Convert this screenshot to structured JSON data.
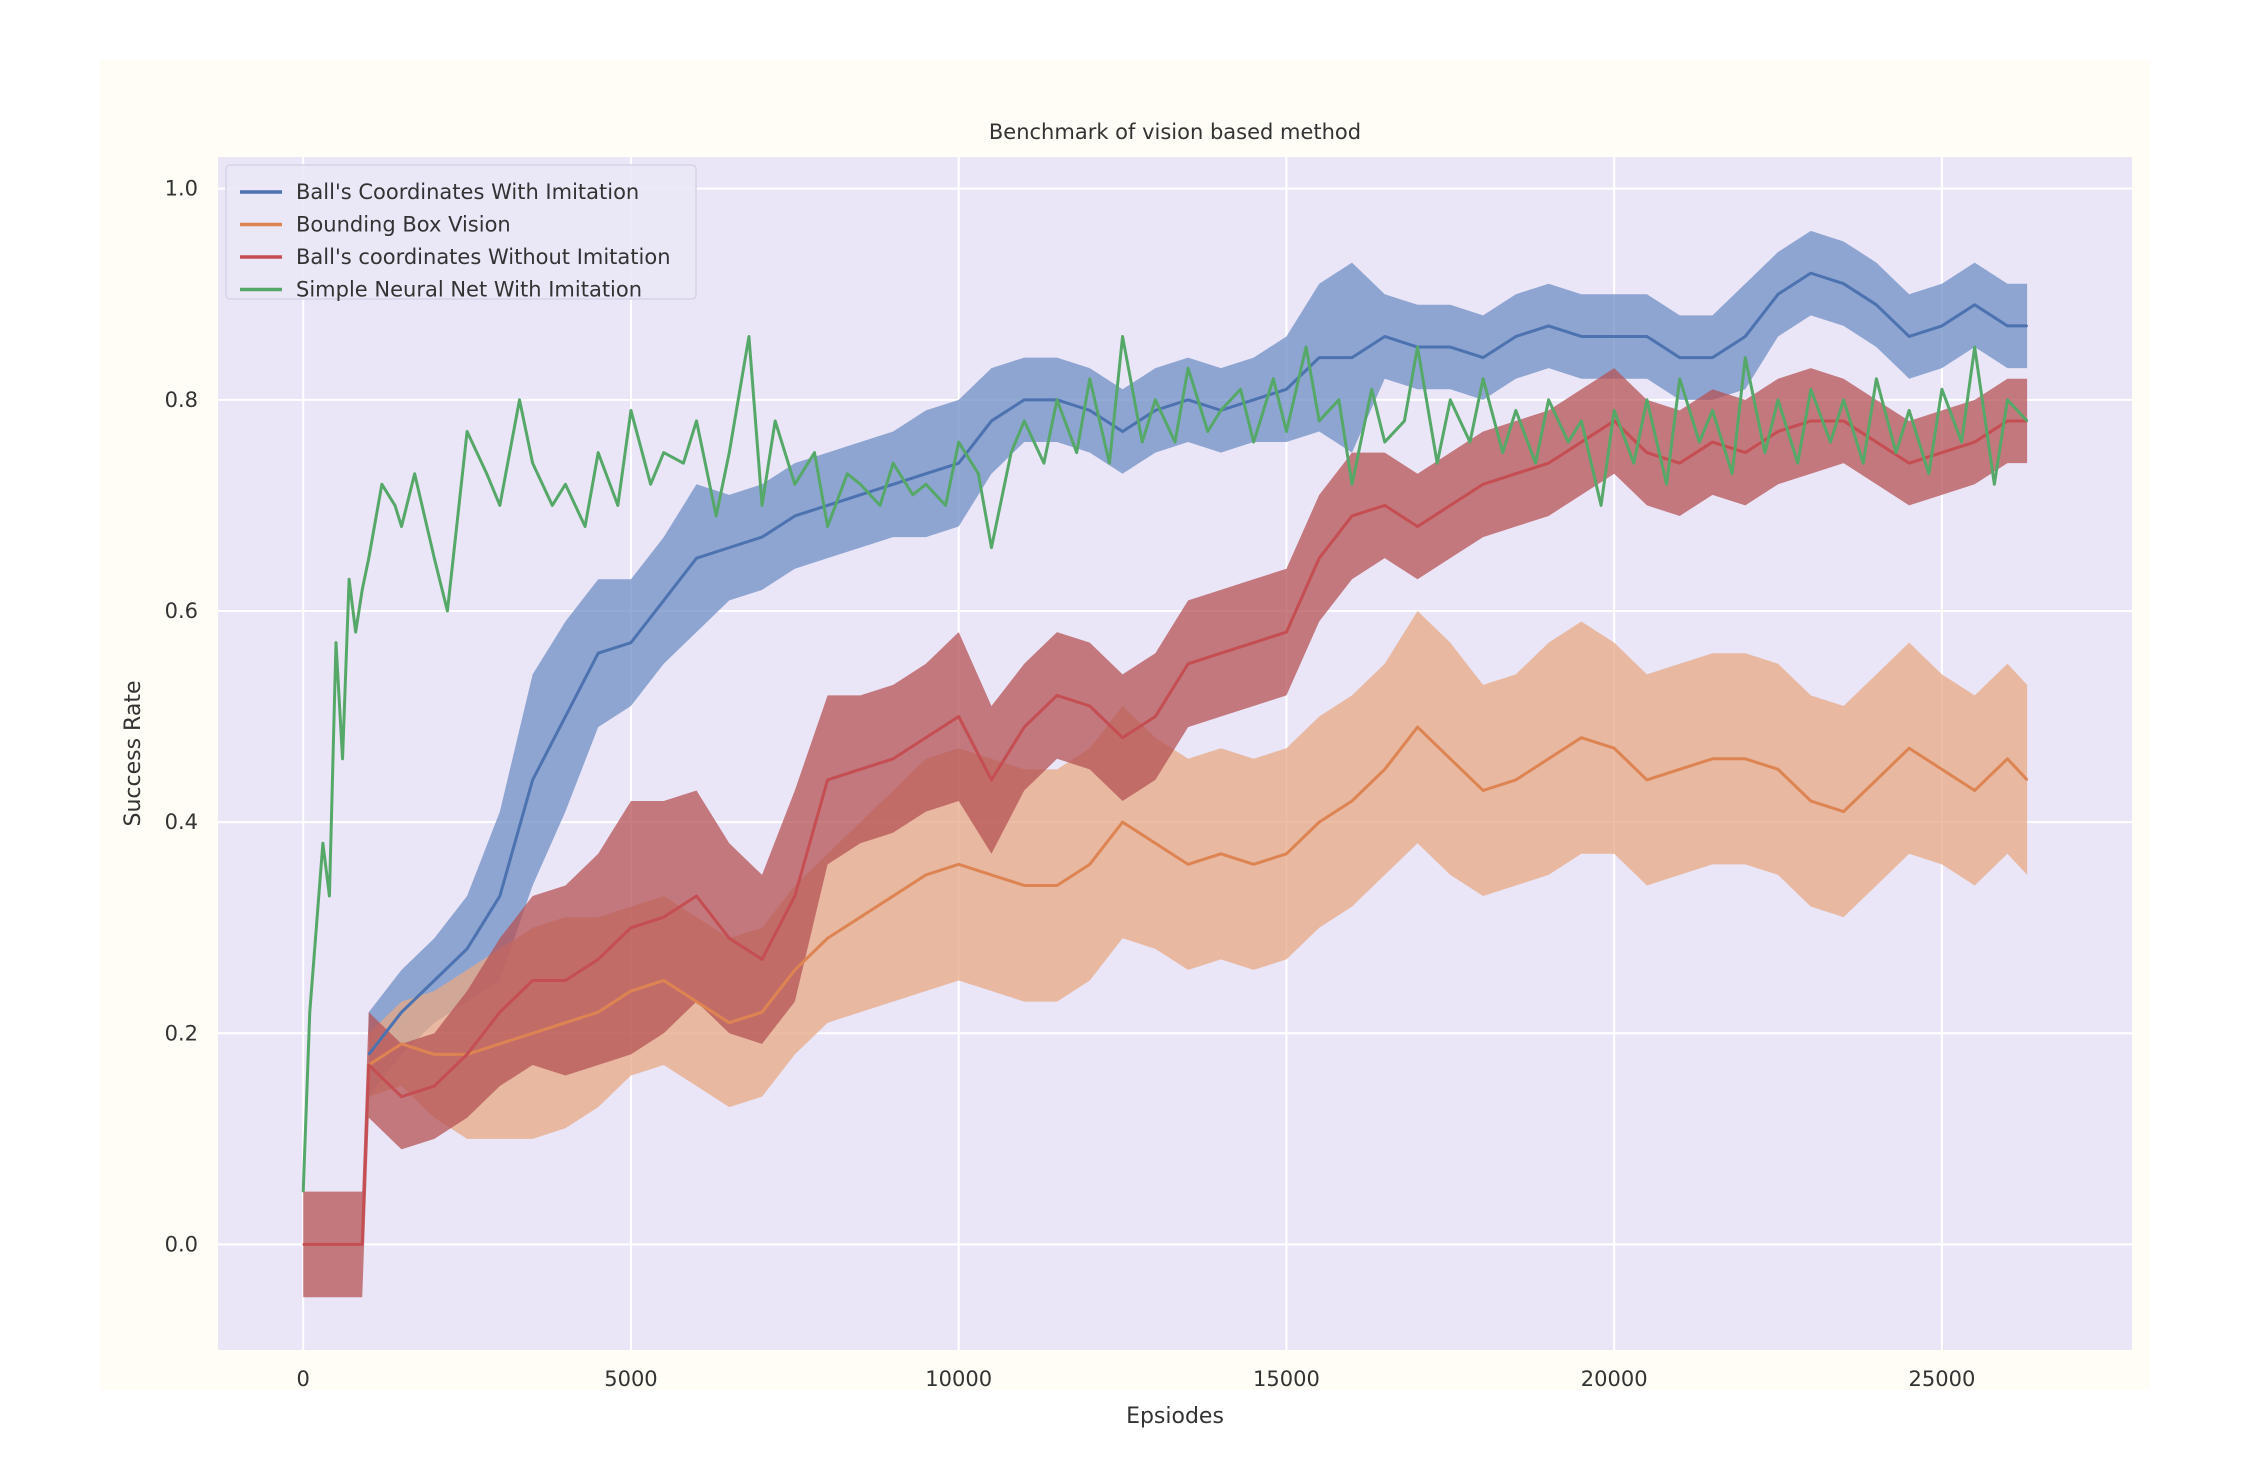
{
  "chart_data": {
    "type": "line",
    "title": "Benchmark of vision based method",
    "xlabel": "Epsiodes",
    "ylabel": "Success Rate",
    "xlim": [
      -1300,
      27900
    ],
    "ylim": [
      -0.1,
      1.03
    ],
    "xticks": [
      0,
      5000,
      10000,
      15000,
      20000,
      25000
    ],
    "xtick_labels": [
      "0",
      "5000",
      "10000",
      "15000",
      "20000",
      "25000"
    ],
    "yticks": [
      0.0,
      0.2,
      0.4,
      0.6,
      0.8,
      1.0
    ],
    "ytick_labels": [
      "0.0",
      "0.2",
      "0.4",
      "0.6",
      "0.8",
      "1.0"
    ],
    "grid": true,
    "legend_position": "top-left",
    "colors": {
      "plot_bg": "#eae6f7",
      "figure_bg": "#fffdf5",
      "grid": "#ffffff"
    },
    "series": [
      {
        "name": "Ball's Coordinates With Imitation",
        "color": "#4c72b0",
        "band_color": "#6f8fc6",
        "x": [
          1000,
          1500,
          2000,
          2500,
          3000,
          3500,
          4000,
          4500,
          5000,
          5500,
          6000,
          6500,
          7000,
          7500,
          8000,
          8500,
          9000,
          9500,
          10000,
          10500,
          11000,
          11500,
          12000,
          12500,
          13000,
          13500,
          14000,
          14500,
          15000,
          15500,
          16000,
          16500,
          17000,
          17500,
          18000,
          18500,
          19000,
          19500,
          20000,
          20500,
          21000,
          21500,
          22000,
          22500,
          23000,
          23500,
          24000,
          24500,
          25000,
          25500,
          26000,
          26300
        ],
        "values": [
          0.18,
          0.22,
          0.25,
          0.28,
          0.33,
          0.44,
          0.5,
          0.56,
          0.57,
          0.61,
          0.65,
          0.66,
          0.67,
          0.69,
          0.7,
          0.71,
          0.72,
          0.73,
          0.74,
          0.78,
          0.8,
          0.8,
          0.79,
          0.77,
          0.79,
          0.8,
          0.79,
          0.8,
          0.81,
          0.84,
          0.84,
          0.86,
          0.85,
          0.85,
          0.84,
          0.86,
          0.87,
          0.86,
          0.86,
          0.86,
          0.84,
          0.84,
          0.86,
          0.9,
          0.92,
          0.91,
          0.89,
          0.86,
          0.87,
          0.89,
          0.87,
          0.87
        ],
        "spread": [
          0.04,
          0.04,
          0.04,
          0.05,
          0.08,
          0.1,
          0.09,
          0.07,
          0.06,
          0.06,
          0.07,
          0.05,
          0.05,
          0.05,
          0.05,
          0.05,
          0.05,
          0.06,
          0.06,
          0.05,
          0.04,
          0.04,
          0.04,
          0.04,
          0.04,
          0.04,
          0.04,
          0.04,
          0.05,
          0.07,
          0.09,
          0.04,
          0.04,
          0.04,
          0.04,
          0.04,
          0.04,
          0.04,
          0.04,
          0.04,
          0.04,
          0.04,
          0.05,
          0.04,
          0.04,
          0.04,
          0.04,
          0.04,
          0.04,
          0.04,
          0.04,
          0.04
        ]
      },
      {
        "name": "Bounding Box Vision",
        "color": "#dd8452",
        "band_color": "#e7a884",
        "x": [
          1000,
          1500,
          2000,
          2500,
          3000,
          3500,
          4000,
          4500,
          5000,
          5500,
          6000,
          6500,
          7000,
          7500,
          8000,
          8500,
          9000,
          9500,
          10000,
          10500,
          11000,
          11500,
          12000,
          12500,
          13000,
          13500,
          14000,
          14500,
          15000,
          15500,
          16000,
          16500,
          17000,
          17500,
          18000,
          18500,
          19000,
          19500,
          20000,
          20500,
          21000,
          21500,
          22000,
          22500,
          23000,
          23500,
          24000,
          24500,
          25000,
          25500,
          26000,
          26300
        ],
        "values": [
          0.17,
          0.19,
          0.18,
          0.18,
          0.19,
          0.2,
          0.21,
          0.22,
          0.24,
          0.25,
          0.23,
          0.21,
          0.22,
          0.26,
          0.29,
          0.31,
          0.33,
          0.35,
          0.36,
          0.35,
          0.34,
          0.34,
          0.36,
          0.4,
          0.38,
          0.36,
          0.37,
          0.36,
          0.37,
          0.4,
          0.42,
          0.45,
          0.49,
          0.46,
          0.43,
          0.44,
          0.46,
          0.48,
          0.47,
          0.44,
          0.45,
          0.46,
          0.46,
          0.45,
          0.42,
          0.41,
          0.44,
          0.47,
          0.45,
          0.43,
          0.46,
          0.44
        ],
        "spread": [
          0.03,
          0.04,
          0.06,
          0.08,
          0.09,
          0.1,
          0.1,
          0.09,
          0.08,
          0.08,
          0.08,
          0.08,
          0.08,
          0.08,
          0.08,
          0.09,
          0.1,
          0.11,
          0.11,
          0.11,
          0.11,
          0.11,
          0.11,
          0.11,
          0.1,
          0.1,
          0.1,
          0.1,
          0.1,
          0.1,
          0.1,
          0.1,
          0.11,
          0.11,
          0.1,
          0.1,
          0.11,
          0.11,
          0.1,
          0.1,
          0.1,
          0.1,
          0.1,
          0.1,
          0.1,
          0.1,
          0.1,
          0.1,
          0.09,
          0.09,
          0.09,
          0.09
        ]
      },
      {
        "name": "Ball's coordinates Without Imitation",
        "color": "#c44e52",
        "band_color": "#b65356",
        "x": [
          0,
          900,
          1000,
          1500,
          2000,
          2500,
          3000,
          3500,
          4000,
          4500,
          5000,
          5500,
          6000,
          6500,
          7000,
          7500,
          8000,
          8500,
          9000,
          9500,
          10000,
          10500,
          11000,
          11500,
          12000,
          12500,
          13000,
          13500,
          14000,
          14500,
          15000,
          15500,
          16000,
          16500,
          17000,
          17500,
          18000,
          18500,
          19000,
          19500,
          20000,
          20500,
          21000,
          21500,
          22000,
          22500,
          23000,
          23500,
          24000,
          24500,
          25000,
          25500,
          26000,
          26300
        ],
        "values": [
          0.0,
          0.0,
          0.17,
          0.14,
          0.15,
          0.18,
          0.22,
          0.25,
          0.25,
          0.27,
          0.3,
          0.31,
          0.33,
          0.29,
          0.27,
          0.33,
          0.44,
          0.45,
          0.46,
          0.48,
          0.5,
          0.44,
          0.49,
          0.52,
          0.51,
          0.48,
          0.5,
          0.55,
          0.56,
          0.57,
          0.58,
          0.65,
          0.69,
          0.7,
          0.68,
          0.7,
          0.72,
          0.73,
          0.74,
          0.76,
          0.78,
          0.75,
          0.74,
          0.76,
          0.75,
          0.77,
          0.78,
          0.78,
          0.76,
          0.74,
          0.75,
          0.76,
          0.78,
          0.78
        ],
        "spread": [
          0.05,
          0.05,
          0.05,
          0.05,
          0.05,
          0.06,
          0.07,
          0.08,
          0.09,
          0.1,
          0.12,
          0.11,
          0.1,
          0.09,
          0.08,
          0.1,
          0.08,
          0.07,
          0.07,
          0.07,
          0.08,
          0.07,
          0.06,
          0.06,
          0.06,
          0.06,
          0.06,
          0.06,
          0.06,
          0.06,
          0.06,
          0.06,
          0.06,
          0.05,
          0.05,
          0.05,
          0.05,
          0.05,
          0.05,
          0.05,
          0.05,
          0.05,
          0.05,
          0.05,
          0.05,
          0.05,
          0.05,
          0.04,
          0.04,
          0.04,
          0.04,
          0.04,
          0.04,
          0.04
        ]
      },
      {
        "name": "Simple Neural Net With Imitation",
        "color": "#55a868",
        "x": [
          0,
          100,
          200,
          300,
          400,
          500,
          600,
          700,
          800,
          900,
          1000,
          1200,
          1400,
          1500,
          1700,
          2000,
          2200,
          2500,
          2800,
          3000,
          3300,
          3500,
          3800,
          4000,
          4300,
          4500,
          4800,
          5000,
          5300,
          5500,
          5800,
          6000,
          6300,
          6500,
          6800,
          7000,
          7200,
          7500,
          7800,
          8000,
          8300,
          8500,
          8800,
          9000,
          9300,
          9500,
          9800,
          10000,
          10300,
          10500,
          10800,
          11000,
          11300,
          11500,
          11800,
          12000,
          12300,
          12500,
          12800,
          13000,
          13300,
          13500,
          13800,
          14000,
          14300,
          14500,
          14800,
          15000,
          15300,
          15500,
          15800,
          16000,
          16300,
          16500,
          16800,
          17000,
          17300,
          17500,
          17800,
          18000,
          18300,
          18500,
          18800,
          19000,
          19300,
          19500,
          19800,
          20000,
          20300,
          20500,
          20800,
          21000,
          21300,
          21500,
          21800,
          22000,
          22300,
          22500,
          22800,
          23000,
          23300,
          23500,
          23800,
          24000,
          24300,
          24500,
          24800,
          25000,
          25300,
          25500,
          25800,
          26000,
          26300
        ],
        "values": [
          0.05,
          0.22,
          0.3,
          0.38,
          0.33,
          0.57,
          0.46,
          0.63,
          0.58,
          0.62,
          0.65,
          0.72,
          0.7,
          0.68,
          0.73,
          0.65,
          0.6,
          0.77,
          0.73,
          0.7,
          0.8,
          0.74,
          0.7,
          0.72,
          0.68,
          0.75,
          0.7,
          0.79,
          0.72,
          0.75,
          0.74,
          0.78,
          0.69,
          0.75,
          0.86,
          0.7,
          0.78,
          0.72,
          0.75,
          0.68,
          0.73,
          0.72,
          0.7,
          0.74,
          0.71,
          0.72,
          0.7,
          0.76,
          0.73,
          0.66,
          0.75,
          0.78,
          0.74,
          0.8,
          0.75,
          0.82,
          0.74,
          0.86,
          0.76,
          0.8,
          0.76,
          0.83,
          0.77,
          0.79,
          0.81,
          0.76,
          0.82,
          0.77,
          0.85,
          0.78,
          0.8,
          0.72,
          0.81,
          0.76,
          0.78,
          0.85,
          0.74,
          0.8,
          0.76,
          0.82,
          0.75,
          0.79,
          0.74,
          0.8,
          0.76,
          0.78,
          0.7,
          0.79,
          0.74,
          0.8,
          0.72,
          0.82,
          0.76,
          0.79,
          0.73,
          0.84,
          0.75,
          0.8,
          0.74,
          0.81,
          0.76,
          0.8,
          0.74,
          0.82,
          0.75,
          0.79,
          0.73,
          0.81,
          0.76,
          0.85,
          0.72,
          0.8,
          0.78
        ]
      }
    ]
  }
}
